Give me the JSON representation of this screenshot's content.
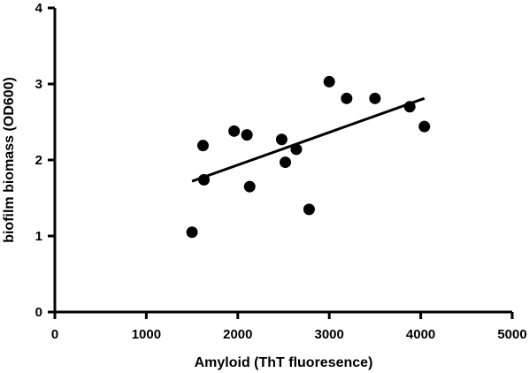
{
  "chart_data": {
    "type": "scatter",
    "title": "",
    "xlabel": "Amyloid (ThT fluoresence)",
    "ylabel": "biofilm biomass (OD600)",
    "xlim": [
      0,
      5000
    ],
    "ylim": [
      0,
      4
    ],
    "x_ticks": [
      0,
      1000,
      2000,
      3000,
      4000,
      5000
    ],
    "y_ticks": [
      0,
      1,
      2,
      3,
      4
    ],
    "grid": false,
    "legend": "none",
    "colors": {
      "points": "#000000",
      "fit_line": "#000000",
      "axes": "#000000"
    },
    "series": [
      {
        "points": [
          {
            "x": 1500,
            "y": 1.05
          },
          {
            "x": 1620,
            "y": 2.19
          },
          {
            "x": 1630,
            "y": 1.74
          },
          {
            "x": 1960,
            "y": 2.38
          },
          {
            "x": 2100,
            "y": 2.33
          },
          {
            "x": 2130,
            "y": 1.65
          },
          {
            "x": 2480,
            "y": 2.27
          },
          {
            "x": 2520,
            "y": 1.97
          },
          {
            "x": 2640,
            "y": 2.14
          },
          {
            "x": 2780,
            "y": 1.35
          },
          {
            "x": 3000,
            "y": 3.03
          },
          {
            "x": 3190,
            "y": 2.81
          },
          {
            "x": 3500,
            "y": 2.81
          },
          {
            "x": 3880,
            "y": 2.7
          },
          {
            "x": 4040,
            "y": 2.44
          }
        ]
      }
    ],
    "fit_line": {
      "x": [
        1500,
        4040
      ],
      "y": [
        1.72,
        2.81
      ]
    }
  }
}
